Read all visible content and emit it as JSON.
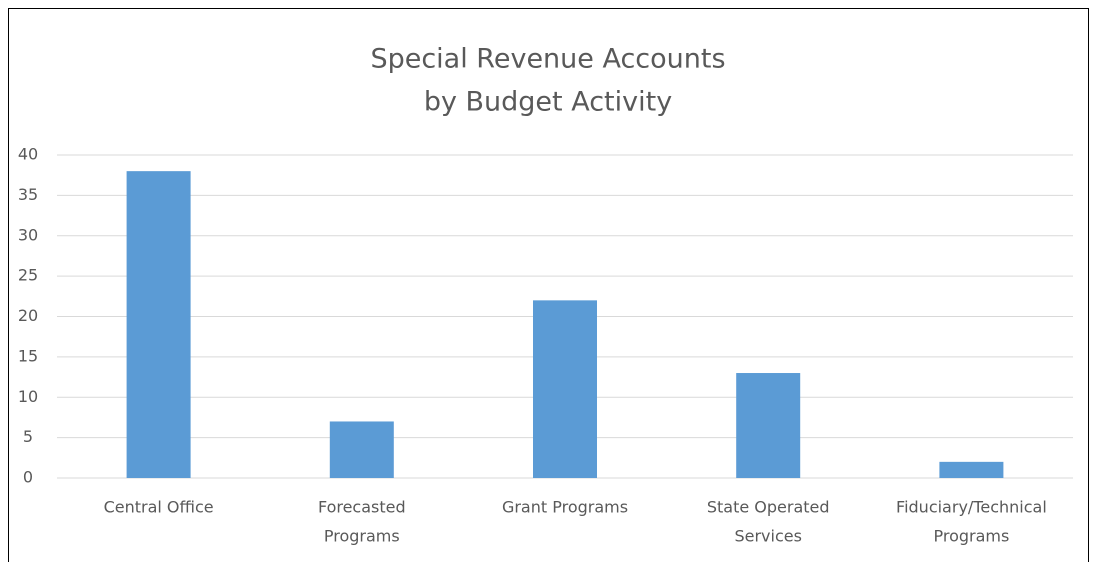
{
  "chart_data": {
    "type": "bar",
    "title": [
      "Special Revenue Accounts",
      "by Budget Activity"
    ],
    "categories": [
      [
        "Central Office"
      ],
      [
        "Forecasted",
        "Programs"
      ],
      [
        "Grant Programs"
      ],
      [
        "State Operated",
        "Services"
      ],
      [
        "Fiduciary/Technical",
        "Programs"
      ]
    ],
    "values": [
      38,
      7,
      22,
      13,
      2
    ],
    "color": "#5b9bd5",
    "ylim": [
      0,
      40
    ],
    "yticks": [
      0,
      5,
      10,
      15,
      20,
      25,
      30,
      35,
      40
    ],
    "grid": true
  }
}
